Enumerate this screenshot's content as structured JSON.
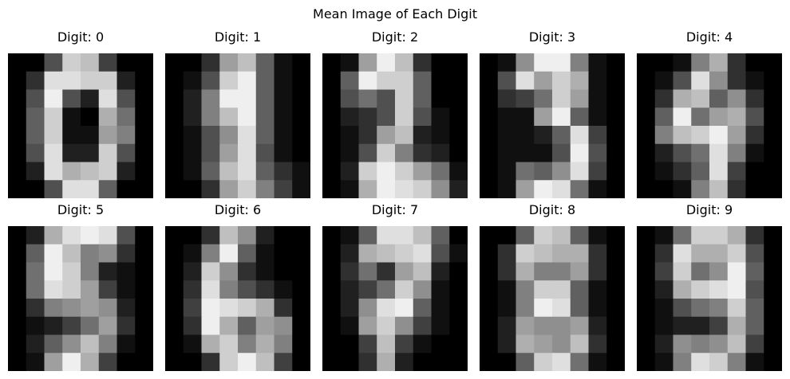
{
  "figure": {
    "title": "Mean Image of Each Digit"
  },
  "chart_data": [
    {
      "type": "heatmap",
      "title": "Digit: 0",
      "colormap": "gray",
      "vmin": 0,
      "vmax": 16,
      "values": [
        [
          0,
          0,
          5,
          13,
          12,
          4,
          0,
          0
        ],
        [
          0,
          3,
          14,
          14,
          13,
          13,
          2,
          0
        ],
        [
          0,
          5,
          15,
          5,
          2,
          14,
          5,
          0
        ],
        [
          0,
          6,
          13,
          1,
          0,
          11,
          7,
          0
        ],
        [
          0,
          6,
          13,
          1,
          1,
          10,
          8,
          0
        ],
        [
          0,
          5,
          14,
          2,
          2,
          13,
          5,
          0
        ],
        [
          0,
          2,
          14,
          11,
          12,
          13,
          2,
          0
        ],
        [
          0,
          0,
          5,
          14,
          14,
          6,
          0,
          0
        ]
      ]
    },
    {
      "type": "heatmap",
      "title": "Digit: 1",
      "colormap": "gray",
      "vmin": 0,
      "vmax": 16,
      "values": [
        [
          0,
          0,
          3,
          10,
          12,
          6,
          1,
          0
        ],
        [
          0,
          1,
          5,
          13,
          15,
          6,
          1,
          0
        ],
        [
          0,
          2,
          8,
          15,
          15,
          6,
          1,
          0
        ],
        [
          0,
          2,
          8,
          12,
          15,
          6,
          1,
          0
        ],
        [
          0,
          1,
          5,
          9,
          14,
          6,
          1,
          0
        ],
        [
          0,
          1,
          5,
          10,
          14,
          5,
          1,
          0
        ],
        [
          0,
          1,
          6,
          12,
          14,
          6,
          3,
          1
        ],
        [
          0,
          0,
          3,
          10,
          13,
          8,
          4,
          1
        ]
      ]
    },
    {
      "type": "heatmap",
      "title": "Digit: 2",
      "colormap": "gray",
      "vmin": 0,
      "vmax": 16,
      "values": [
        [
          0,
          1,
          10,
          15,
          12,
          3,
          0,
          0
        ],
        [
          0,
          6,
          15,
          13,
          13,
          6,
          0,
          0
        ],
        [
          0,
          5,
          7,
          5,
          13,
          6,
          0,
          0
        ],
        [
          0,
          2,
          3,
          5,
          13,
          5,
          1,
          0
        ],
        [
          0,
          1,
          3,
          10,
          12,
          2,
          1,
          0
        ],
        [
          0,
          1,
          5,
          13,
          8,
          3,
          2,
          0
        ],
        [
          0,
          2,
          13,
          15,
          13,
          10,
          7,
          1
        ],
        [
          0,
          1,
          11,
          15,
          14,
          13,
          9,
          2
        ]
      ]
    },
    {
      "type": "heatmap",
      "title": "Digit: 3",
      "colormap": "gray",
      "vmin": 0,
      "vmax": 16,
      "values": [
        [
          0,
          1,
          9,
          15,
          15,
          8,
          1,
          0
        ],
        [
          0,
          5,
          14,
          10,
          13,
          11,
          1,
          0
        ],
        [
          0,
          3,
          4,
          7,
          13,
          10,
          1,
          0
        ],
        [
          0,
          1,
          1,
          10,
          15,
          6,
          1,
          0
        ],
        [
          0,
          1,
          1,
          2,
          6,
          14,
          4,
          0
        ],
        [
          0,
          1,
          1,
          1,
          5,
          15,
          5,
          0
        ],
        [
          0,
          1,
          7,
          6,
          9,
          14,
          4,
          0
        ],
        [
          0,
          1,
          10,
          15,
          14,
          7,
          1,
          0
        ]
      ]
    },
    {
      "type": "heatmap",
      "title": "Digit: 4",
      "colormap": "gray",
      "vmin": 0,
      "vmax": 16,
      "values": [
        [
          0,
          0,
          1,
          8,
          11,
          3,
          0,
          0
        ],
        [
          0,
          1,
          5,
          14,
          9,
          3,
          1,
          0
        ],
        [
          0,
          3,
          11,
          12,
          6,
          9,
          3,
          0
        ],
        [
          0,
          6,
          15,
          7,
          10,
          11,
          5,
          0
        ],
        [
          0,
          8,
          12,
          13,
          15,
          10,
          3,
          0
        ],
        [
          0,
          2,
          5,
          7,
          14,
          8,
          1,
          0
        ],
        [
          0,
          1,
          3,
          6,
          14,
          4,
          0,
          0
        ],
        [
          0,
          0,
          1,
          8,
          12,
          3,
          0,
          0
        ]
      ]
    },
    {
      "type": "heatmap",
      "title": "Digit: 5",
      "colormap": "gray",
      "vmin": 0,
      "vmax": 16,
      "values": [
        [
          0,
          2,
          11,
          14,
          15,
          14,
          5,
          0
        ],
        [
          0,
          6,
          15,
          12,
          8,
          9,
          3,
          0
        ],
        [
          0,
          7,
          15,
          13,
          8,
          2,
          1,
          0
        ],
        [
          0,
          7,
          14,
          13,
          10,
          4,
          1,
          0
        ],
        [
          0,
          3,
          8,
          9,
          10,
          9,
          2,
          0
        ],
        [
          0,
          1,
          2,
          4,
          7,
          10,
          3,
          0
        ],
        [
          0,
          2,
          6,
          9,
          12,
          8,
          1,
          0
        ],
        [
          0,
          1,
          10,
          15,
          11,
          4,
          0,
          0
        ]
      ]
    },
    {
      "type": "heatmap",
      "title": "Digit: 6",
      "colormap": "gray",
      "vmin": 0,
      "vmax": 16,
      "values": [
        [
          0,
          0,
          3,
          12,
          9,
          2,
          0,
          0
        ],
        [
          0,
          1,
          8,
          15,
          6,
          1,
          0,
          0
        ],
        [
          0,
          2,
          13,
          9,
          3,
          1,
          0,
          0
        ],
        [
          0,
          3,
          14,
          8,
          5,
          3,
          1,
          0
        ],
        [
          0,
          4,
          15,
          14,
          13,
          11,
          3,
          0
        ],
        [
          0,
          3,
          15,
          11,
          6,
          10,
          9,
          0
        ],
        [
          0,
          1,
          11,
          13,
          8,
          11,
          8,
          0
        ],
        [
          0,
          0,
          3,
          13,
          15,
          12,
          4,
          0
        ]
      ]
    },
    {
      "type": "heatmap",
      "title": "Digit: 7",
      "colormap": "gray",
      "vmin": 0,
      "vmax": 16,
      "values": [
        [
          0,
          1,
          6,
          14,
          14,
          12,
          6,
          0
        ],
        [
          0,
          2,
          11,
          12,
          13,
          14,
          5,
          1
        ],
        [
          0,
          3,
          7,
          3,
          10,
          12,
          2,
          0
        ],
        [
          0,
          2,
          4,
          7,
          13,
          9,
          1,
          0
        ],
        [
          0,
          2,
          9,
          14,
          15,
          6,
          1,
          0
        ],
        [
          0,
          1,
          10,
          13,
          9,
          4,
          1,
          0
        ],
        [
          0,
          0,
          4,
          12,
          4,
          1,
          0,
          0
        ],
        [
          0,
          0,
          3,
          11,
          2,
          0,
          0,
          0
        ]
      ]
    },
    {
      "type": "heatmap",
      "title": "Digit: 8",
      "colormap": "gray",
      "vmin": 0,
      "vmax": 16,
      "values": [
        [
          0,
          0,
          6,
          13,
          12,
          6,
          1,
          0
        ],
        [
          0,
          3,
          13,
          12,
          11,
          11,
          3,
          0
        ],
        [
          0,
          3,
          11,
          8,
          8,
          10,
          3,
          0
        ],
        [
          0,
          1,
          8,
          13,
          13,
          6,
          1,
          0
        ],
        [
          0,
          1,
          8,
          15,
          14,
          6,
          1,
          0
        ],
        [
          0,
          2,
          10,
          9,
          9,
          10,
          2,
          0
        ],
        [
          0,
          2,
          11,
          10,
          9,
          12,
          3,
          0
        ],
        [
          0,
          0,
          6,
          13,
          14,
          7,
          1,
          0
        ]
      ]
    },
    {
      "type": "heatmap",
      "title": "Digit: 9",
      "colormap": "gray",
      "vmin": 0,
      "vmax": 16,
      "values": [
        [
          0,
          1,
          7,
          13,
          13,
          11,
          3,
          0
        ],
        [
          0,
          3,
          14,
          11,
          11,
          13,
          5,
          0
        ],
        [
          0,
          4,
          13,
          7,
          9,
          15,
          6,
          0
        ],
        [
          0,
          2,
          11,
          13,
          14,
          15,
          5,
          0
        ],
        [
          0,
          1,
          5,
          7,
          8,
          13,
          6,
          0
        ],
        [
          0,
          1,
          2,
          2,
          4,
          11,
          6,
          0
        ],
        [
          0,
          2,
          9,
          8,
          9,
          12,
          4,
          0
        ],
        [
          0,
          1,
          8,
          14,
          13,
          8,
          1,
          0
        ]
      ]
    }
  ]
}
